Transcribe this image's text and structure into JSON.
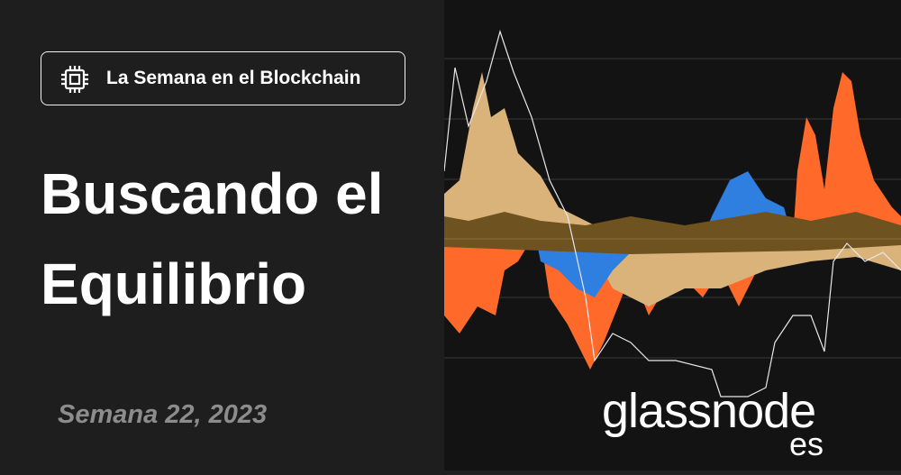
{
  "badge": {
    "label": "La Semana en el Blockchain"
  },
  "title": "Buscando el Equilibrio",
  "date": "Semana 22, 2023",
  "logo": {
    "name": "glassnode",
    "suffix": "es"
  }
}
